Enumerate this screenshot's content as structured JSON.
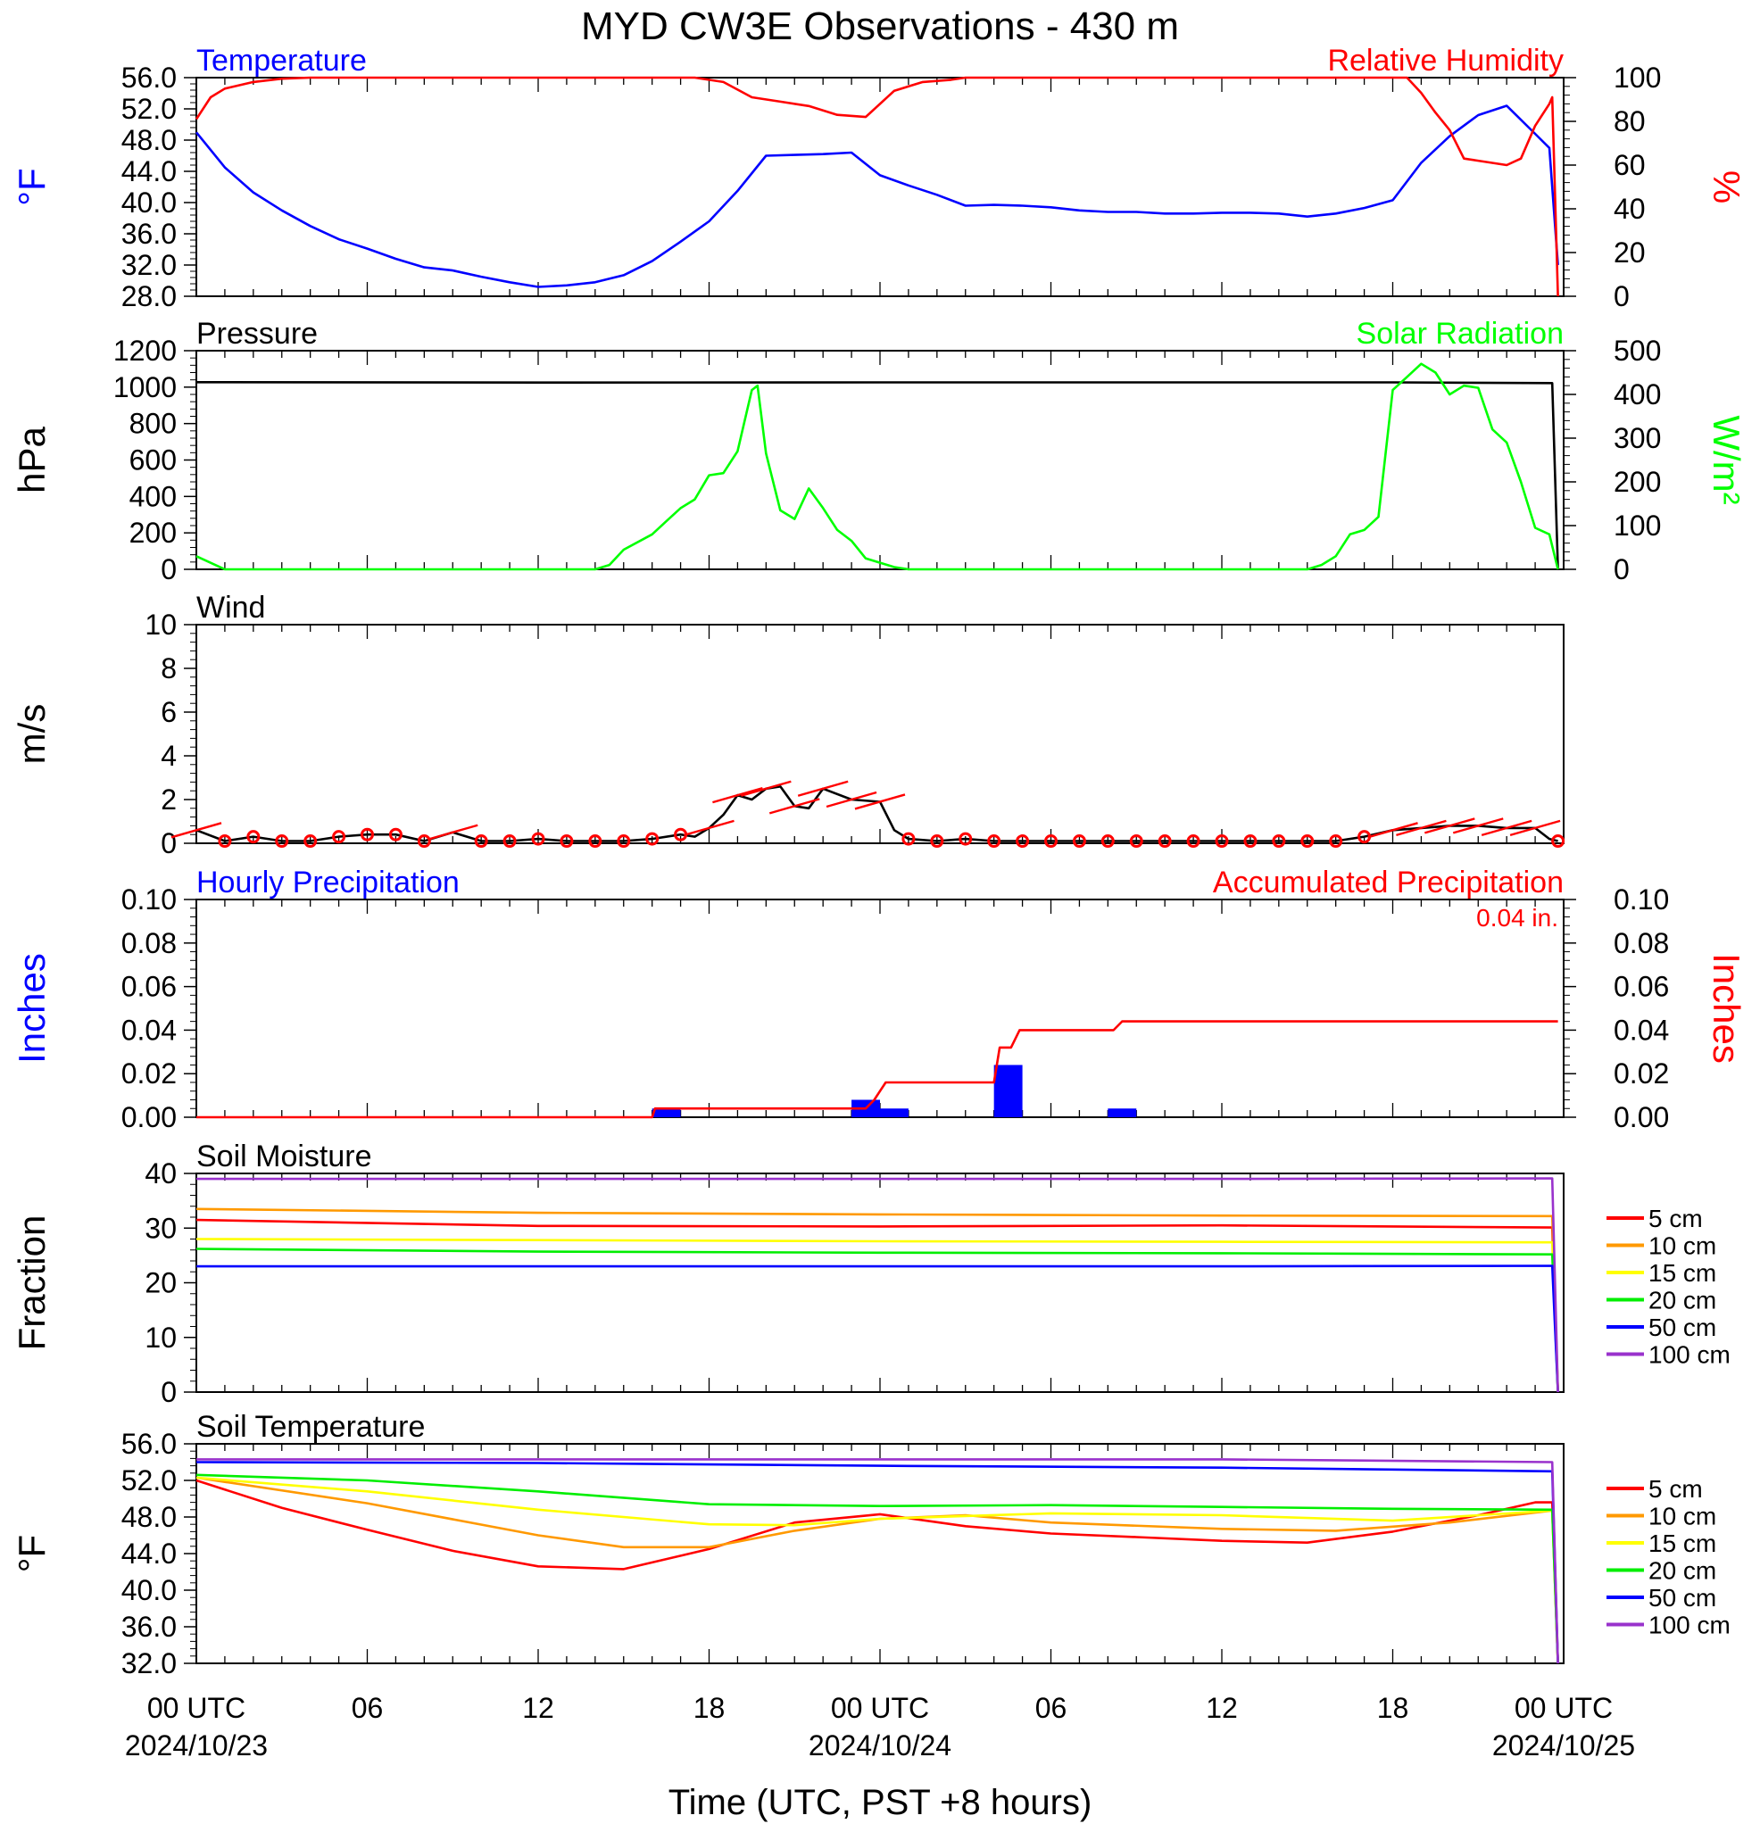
{
  "page_title": "MYD CW3E Observations - 430 m",
  "colors": {
    "temperature": "#0000ff",
    "humidity": "#ff0000",
    "pressure": "#000000",
    "solar": "#00ff00",
    "wind_trace": "#000000",
    "wind_barb": "#ff0000",
    "hourly_precip": "#0000ff",
    "accum_precip": "#ff0000",
    "depth_5cm": "#ff0000",
    "depth_10cm": "#ff9900",
    "depth_15cm": "#ffff00",
    "depth_20cm": "#00ee00",
    "depth_50cm": "#0000ff",
    "depth_100cm": "#9932cc"
  },
  "x_axis": {
    "title": "Time (UTC, PST +8 hours)",
    "tick_labels": [
      "00 UTC",
      "06",
      "12",
      "18",
      "00 UTC",
      "06",
      "12",
      "18",
      "00 UTC"
    ],
    "date_labels": [
      "2024/10/23",
      "2024/10/24",
      "2024/10/25"
    ]
  },
  "chart_data": [
    {
      "type": "line",
      "title_left": "Temperature",
      "title_right": "Relative Humidity",
      "ylabel_left": "°F",
      "ylabel_right": "%",
      "ylim_left": [
        28,
        56
      ],
      "ylim_right": [
        0,
        100
      ],
      "yticks_left": [
        "56.0",
        "52.0",
        "48.0",
        "44.0",
        "40.0",
        "36.0",
        "32.0",
        "28.0"
      ],
      "yticks_right": [
        "100",
        "80",
        "60",
        "40",
        "20",
        "0"
      ],
      "series": [
        {
          "name": "Temperature",
          "axis": "left",
          "hours": [
            0,
            1,
            2,
            3,
            4,
            5,
            6,
            7,
            8,
            9,
            10,
            11,
            12,
            13,
            14,
            15,
            16,
            17,
            18,
            19,
            20,
            21,
            22,
            23,
            24,
            25,
            26,
            27,
            28,
            29,
            30,
            31,
            32,
            33,
            34,
            35,
            36,
            37,
            38,
            39,
            40,
            41,
            42,
            43,
            44,
            45,
            46,
            47,
            47.5,
            47.8
          ],
          "values": [
            49.0,
            44.5,
            41.3,
            39.0,
            37.0,
            35.3,
            34.1,
            32.8,
            31.7,
            31.3,
            30.5,
            29.8,
            29.2,
            29.4,
            29.8,
            30.7,
            32.5,
            35.0,
            37.6,
            41.5,
            46.0,
            46.1,
            46.2,
            46.4,
            43.5,
            42.2,
            41.0,
            39.6,
            39.7,
            39.6,
            39.4,
            39.0,
            38.8,
            38.8,
            38.6,
            38.6,
            38.7,
            38.7,
            38.6,
            38.2,
            38.6,
            39.3,
            40.3,
            45.1,
            48.5,
            51.2,
            52.4,
            48.8,
            47.0,
            32.0
          ]
        },
        {
          "name": "Relative Humidity",
          "axis": "right",
          "hours": [
            0,
            0.5,
            1,
            2,
            3,
            4,
            5,
            10,
            17.5,
            18.5,
            19.5,
            20.5,
            21.5,
            22.5,
            23.5,
            24.5,
            25.5,
            26.5,
            27,
            28,
            34,
            40,
            42.5,
            43,
            43.5,
            44,
            44.5,
            45,
            46,
            46.5,
            47,
            47.5,
            47.6,
            47.8
          ],
          "values": [
            81,
            91,
            95,
            98,
            99.5,
            100,
            100,
            100,
            100,
            98,
            91,
            89,
            87,
            83,
            82,
            94,
            98,
            99,
            100,
            100,
            100,
            100,
            100,
            93,
            84,
            76,
            63,
            62,
            60,
            63,
            78,
            88,
            91,
            0
          ]
        }
      ]
    },
    {
      "type": "line",
      "title_left": "Pressure",
      "title_right": "Solar Radiation",
      "ylabel_left": "hPa",
      "ylabel_right": "W/m²",
      "ylim_left": [
        0,
        1200
      ],
      "ylim_right": [
        0,
        500
      ],
      "yticks_left": [
        "1200",
        "1000",
        "800",
        "600",
        "400",
        "200",
        "0"
      ],
      "yticks_right": [
        "500",
        "400",
        "300",
        "200",
        "100",
        "0"
      ],
      "series": [
        {
          "name": "Pressure",
          "axis": "left",
          "hours": [
            0,
            12,
            24,
            36,
            42,
            47.6,
            47.8
          ],
          "values": [
            1027,
            1025,
            1026,
            1026,
            1026,
            1022,
            0
          ]
        },
        {
          "name": "Solar Radiation",
          "axis": "right",
          "hours": [
            0,
            1,
            14,
            14.5,
            15,
            16,
            16.5,
            17,
            17.5,
            18,
            18.5,
            19,
            19.5,
            19.7,
            20,
            20.5,
            21,
            21.5,
            22,
            22.5,
            23,
            23.5,
            24,
            24.5,
            25,
            26,
            39,
            39.5,
            40,
            40.5,
            41,
            41.5,
            42,
            42.5,
            43,
            43.5,
            44,
            44.5,
            45,
            45.5,
            46,
            46.5,
            47,
            47.5,
            47.8
          ],
          "values": [
            30,
            0,
            0,
            10,
            45,
            80,
            110,
            140,
            160,
            215,
            220,
            270,
            410,
            420,
            265,
            135,
            115,
            185,
            140,
            90,
            65,
            25,
            15,
            5,
            0,
            0,
            0,
            10,
            30,
            80,
            90,
            120,
            410,
            440,
            470,
            450,
            400,
            420,
            415,
            320,
            290,
            200,
            95,
            80,
            0
          ]
        }
      ]
    },
    {
      "type": "line",
      "title_left": "Wind",
      "ylabel_left": "m/s",
      "ylim_left": [
        0,
        10
      ],
      "yticks_left": [
        "10",
        "8",
        "6",
        "4",
        "2",
        "0"
      ],
      "series": [
        {
          "name": "Wind",
          "axis": "left",
          "hours": [
            0,
            1,
            2,
            3,
            4,
            5,
            6,
            7,
            8,
            9,
            10,
            11,
            12,
            13,
            14,
            15,
            16,
            17,
            17.5,
            18,
            18.5,
            19,
            19.5,
            20,
            20.5,
            21,
            21.5,
            22,
            23,
            24,
            24.5,
            25,
            26,
            27,
            28,
            35,
            40,
            41,
            42,
            43,
            44,
            45,
            46,
            47,
            47.5,
            47.8
          ],
          "values": [
            0.6,
            0.1,
            0.3,
            0.1,
            0.1,
            0.3,
            0.4,
            0.4,
            0.1,
            0.5,
            0.1,
            0.1,
            0.2,
            0.1,
            0.1,
            0.1,
            0.2,
            0.4,
            0.3,
            0.7,
            1.3,
            2.2,
            2.0,
            2.5,
            2.6,
            1.7,
            1.6,
            2.5,
            2.0,
            1.9,
            0.6,
            0.2,
            0.1,
            0.2,
            0.1,
            0.1,
            0.1,
            0.3,
            0.6,
            0.7,
            0.8,
            0.8,
            0.7,
            0.7,
            0.2,
            0.1
          ]
        }
      ],
      "barbs_hours": [
        0,
        1,
        2,
        3,
        4,
        5,
        6,
        7,
        8,
        9,
        10,
        11,
        12,
        13,
        14,
        15,
        16,
        17,
        18,
        19,
        20,
        21,
        22,
        23,
        24,
        25,
        26,
        27,
        28,
        29,
        30,
        31,
        32,
        33,
        34,
        35,
        36,
        37,
        38,
        39,
        40,
        41,
        42,
        43,
        44,
        45,
        46,
        47,
        47.8
      ]
    },
    {
      "type": "bar",
      "title_left": "Hourly Precipitation",
      "title_right": "Accumulated Precipitation",
      "annotation": "0.04 in.",
      "ylabel_left": "Inches",
      "ylabel_right": "Inches",
      "ylim_left": [
        0,
        0.1
      ],
      "ylim_right": [
        0,
        0.1
      ],
      "yticks_left": [
        "0.10",
        "0.08",
        "0.06",
        "0.04",
        "0.02",
        "0.00"
      ],
      "yticks_right": [
        "0.10",
        "0.08",
        "0.06",
        "0.04",
        "0.02",
        "0.00"
      ],
      "bars": {
        "hours": [
          16.5,
          23.5,
          24.5,
          28.5,
          32.5
        ],
        "values": [
          0.004,
          0.008,
          0.004,
          0.024,
          0.004
        ]
      },
      "series": [
        {
          "name": "Accumulated Precipitation",
          "axis": "right",
          "hours": [
            0,
            16,
            16.1,
            23.5,
            23.8,
            24,
            24.2,
            28,
            28.2,
            28.6,
            28.9,
            32.2,
            32.5,
            47.8
          ],
          "values": [
            0,
            0,
            0.004,
            0.004,
            0.008,
            0.012,
            0.016,
            0.016,
            0.032,
            0.032,
            0.04,
            0.04,
            0.044,
            0.044
          ]
        }
      ]
    },
    {
      "type": "line",
      "title_left": "Soil Moisture",
      "ylabel_left": "Fraction",
      "ylim_left": [
        0,
        40
      ],
      "yticks_left": [
        "40",
        "30",
        "20",
        "10",
        "0"
      ],
      "legend": [
        "5 cm",
        "10 cm",
        "15 cm",
        "20 cm",
        "50 cm",
        "100 cm"
      ],
      "series": [
        {
          "name": "5 cm",
          "axis": "left",
          "hours": [
            0,
            12,
            24,
            36,
            47.6,
            47.8
          ],
          "values": [
            31.5,
            30.4,
            30.3,
            30.5,
            30.1,
            0
          ]
        },
        {
          "name": "10 cm",
          "axis": "left",
          "hours": [
            0,
            12,
            24,
            36,
            47.6,
            47.8
          ],
          "values": [
            33.5,
            32.8,
            32.5,
            32.3,
            32.2,
            0
          ]
        },
        {
          "name": "15 cm",
          "axis": "left",
          "hours": [
            0,
            12,
            24,
            36,
            47.6,
            47.8
          ],
          "values": [
            28.0,
            27.8,
            27.6,
            27.5,
            27.4,
            0
          ]
        },
        {
          "name": "20 cm",
          "axis": "left",
          "hours": [
            0,
            12,
            24,
            36,
            47.6,
            47.8
          ],
          "values": [
            26.2,
            25.7,
            25.5,
            25.4,
            25.2,
            0
          ]
        },
        {
          "name": "50 cm",
          "axis": "left",
          "hours": [
            0,
            12,
            24,
            36,
            47.6,
            47.8
          ],
          "values": [
            23.0,
            23.0,
            23.0,
            23.0,
            23.1,
            0
          ]
        },
        {
          "name": "100 cm",
          "axis": "left",
          "hours": [
            0,
            12,
            24,
            36,
            47.6,
            47.8
          ],
          "values": [
            39.0,
            39.0,
            39.0,
            39.0,
            39.1,
            0
          ]
        }
      ]
    },
    {
      "type": "line",
      "title_left": "Soil Temperature",
      "ylabel_left": "°F",
      "ylim_left": [
        32,
        56
      ],
      "yticks_left": [
        "56.0",
        "52.0",
        "48.0",
        "44.0",
        "40.0",
        "36.0",
        "32.0"
      ],
      "legend": [
        "5 cm",
        "10 cm",
        "15 cm",
        "20 cm",
        "50 cm",
        "100 cm"
      ],
      "series": [
        {
          "name": "5 cm",
          "axis": "left",
          "hours": [
            0,
            3,
            6,
            9,
            12,
            15,
            18,
            21,
            24,
            27,
            30,
            33,
            36,
            39,
            42,
            45,
            47,
            47.6,
            47.8
          ],
          "values": [
            52.0,
            49.0,
            46.6,
            44.3,
            42.6,
            42.3,
            44.5,
            47.4,
            48.3,
            47.0,
            46.2,
            45.8,
            45.4,
            45.2,
            46.4,
            48.2,
            49.6,
            49.6,
            32.0
          ]
        },
        {
          "name": "10 cm",
          "axis": "left",
          "hours": [
            0,
            6,
            12,
            15,
            18,
            21,
            24,
            27,
            30,
            36,
            40,
            44,
            47.6,
            47.8
          ],
          "values": [
            52.3,
            49.5,
            46.0,
            44.7,
            44.7,
            46.5,
            47.8,
            48.2,
            47.4,
            46.7,
            46.5,
            47.4,
            48.7,
            32.0
          ]
        },
        {
          "name": "15 cm",
          "axis": "left",
          "hours": [
            0,
            6,
            12,
            18,
            21,
            24,
            30,
            36,
            42,
            47.6,
            47.8
          ],
          "values": [
            52.3,
            50.8,
            48.8,
            47.2,
            47.1,
            47.8,
            48.4,
            48.2,
            47.6,
            48.7,
            32.0
          ]
        },
        {
          "name": "20 cm",
          "axis": "left",
          "hours": [
            0,
            6,
            12,
            18,
            24,
            30,
            36,
            42,
            47.6,
            47.8
          ],
          "values": [
            52.6,
            52.0,
            50.8,
            49.4,
            49.2,
            49.3,
            49.1,
            48.9,
            48.8,
            32.0
          ]
        },
        {
          "name": "50 cm",
          "axis": "left",
          "hours": [
            0,
            12,
            24,
            36,
            47.6,
            47.8
          ],
          "values": [
            54.0,
            53.9,
            53.6,
            53.4,
            53.0,
            32.0
          ]
        },
        {
          "name": "100 cm",
          "axis": "left",
          "hours": [
            0,
            12,
            24,
            36,
            47.6,
            47.8
          ],
          "values": [
            54.3,
            54.3,
            54.3,
            54.3,
            54.0,
            32.0
          ]
        }
      ]
    }
  ]
}
